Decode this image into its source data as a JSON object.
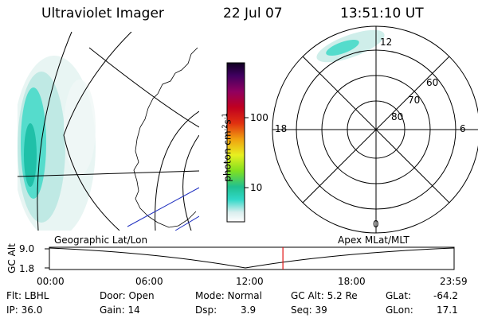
{
  "header": {
    "title": "Ultraviolet Imager",
    "date": "22 Jul 07",
    "time": "13:51:10 UT"
  },
  "colorbar": {
    "unit_label": "photon cm",
    "unit_exp1": "-2",
    "unit_s": "s",
    "unit_exp2": "-1",
    "tick_100": "100",
    "tick_10": "10"
  },
  "polar": {
    "mlt_top": "12",
    "mlt_left": "18",
    "mlt_right": "6",
    "mlt_bottom": "0",
    "lat_60": "60",
    "lat_70": "70",
    "lat_80": "80"
  },
  "timeline": {
    "left_label": "Geographic Lat/Lon",
    "right_label": "Apex MLat/MLT",
    "y_axis_label": "GC Alt",
    "y_top": "9.0",
    "y_bottom": "1.8",
    "current_time_fraction": 0.577,
    "ticks": [
      "00:00",
      "06:00",
      "12:00",
      "18:00",
      "23:59"
    ]
  },
  "info": {
    "filter": "Flt: LBHL",
    "ip": "IP: 36.0",
    "door": "Door: Open",
    "gain": "Gain: 14",
    "mode": "Mode: Normal",
    "dsp_label": "Dsp:",
    "dsp_value": "3.9",
    "gc_alt": "GC Alt: 5.2 Re",
    "seq": "Seq: 39",
    "glat_label": "GLat:",
    "glat_value": "-64.2",
    "glon_label": "GLon:",
    "glon_value": "17.1"
  },
  "colors": {
    "aurora_cyan": "#2fe0d0",
    "aurora_pale": "#cfeeea",
    "marker_red": "#e01010",
    "coast_blue": "#2030c0"
  }
}
